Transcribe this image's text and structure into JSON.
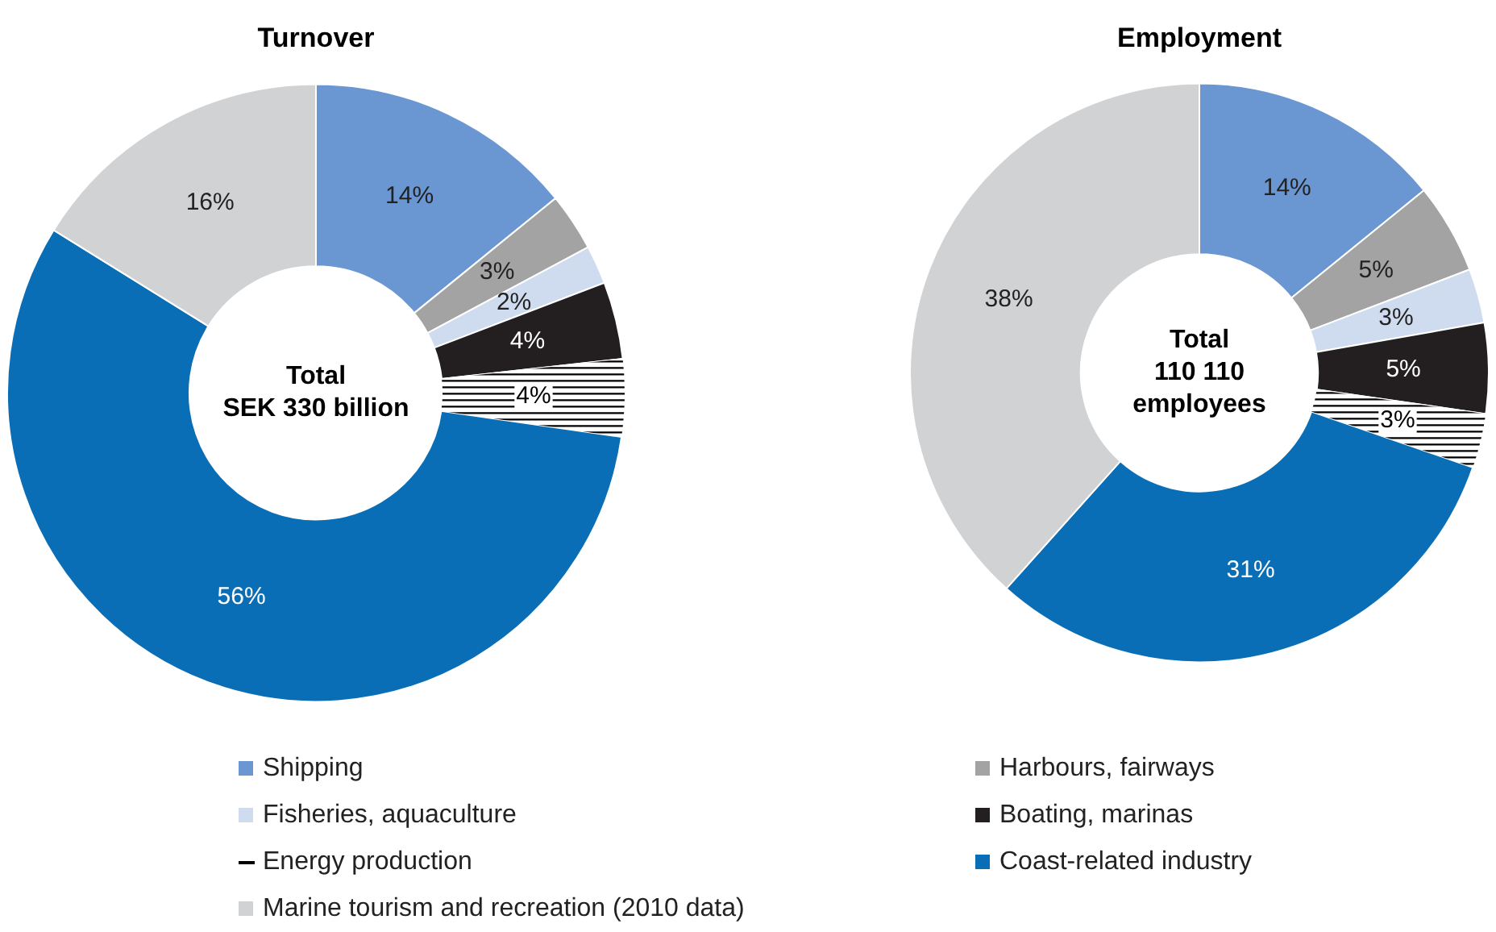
{
  "chart_data": [
    {
      "type": "donut",
      "title": "Turnover",
      "categories": [
        "Shipping",
        "Harbours, fairways",
        "Fisheries, aquaculture",
        "Boating, marinas",
        "Energy production",
        "Coast-related industry",
        "Marine tourism and recreation (2010 data)"
      ],
      "values": [
        14,
        3,
        2,
        4,
        4,
        56,
        16
      ],
      "value_labels": [
        "14%",
        "3%",
        "2%",
        "4%",
        "4%",
        "56%",
        "16%"
      ],
      "colors": [
        "#6a96d2",
        "#a3a3a3",
        "#cfdcef",
        "#231f20",
        "#ffffff",
        "#0a6eb7",
        "#d1d2d4"
      ],
      "annotations": [
        "Total",
        "SEK 330 billion"
      ],
      "legend": "bottom"
    },
    {
      "type": "donut",
      "title": "Employment",
      "categories": [
        null,
        null,
        null,
        null,
        null,
        null,
        null
      ],
      "values": [
        14,
        5,
        3,
        5,
        3,
        31,
        38
      ],
      "value_labels": [
        "14%",
        "5%",
        "3%",
        "5%",
        "3%",
        "31%",
        "38%"
      ],
      "colors": [
        "#6a96d2",
        "#a3a3a3",
        "#cfdcef",
        "#231f20",
        "#ffffff",
        "#0a6eb7",
        "#d1d2d4"
      ],
      "annotations": [
        "Total",
        "110 110",
        "employees"
      ]
    }
  ]
}
